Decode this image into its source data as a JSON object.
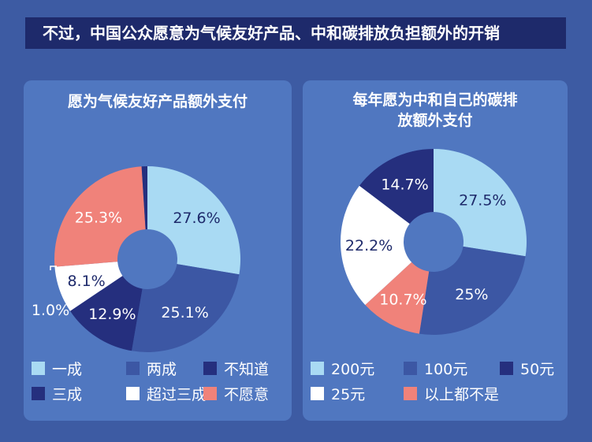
{
  "title": "不过，中国公众愿意为气候友好产品、中和碳排放负担额外的开销",
  "chart_data": [
    {
      "type": "pie",
      "title": "愿为气候友好产品额外支付",
      "categories": [
        "一成",
        "两成",
        "不知道",
        "三成",
        "超过三成",
        "不愿意"
      ],
      "series": [
        {
          "values": [
            27.6,
            25.1,
            12.9,
            1.0,
            8.1,
            25.3
          ]
        }
      ],
      "labels": [
        "27.6%",
        "25.1%",
        "12.9%",
        "1.0%",
        "8.1%",
        "25.3%"
      ],
      "slice_order": [
        "一成",
        "两成",
        "不知道",
        "超过三成",
        "不愿意",
        "三成"
      ],
      "colors": {
        "一成": "#a9daf3",
        "两成": "#3c57a4",
        "不知道": "#252f7e",
        "三成": "#252f7e",
        "超过三成": "#ffffff",
        "不愿意": "#f0827a"
      },
      "legend": "bottom"
    },
    {
      "type": "pie",
      "title": "每年愿为中和自己的碳排放额外支付",
      "categories": [
        "200元",
        "100元",
        "50元",
        "25元",
        "以上都不是"
      ],
      "series": [
        {
          "values": [
            27.5,
            25,
            14.7,
            22.2,
            10.7
          ]
        }
      ],
      "labels": [
        "27.5%",
        "25%",
        "14.7%",
        "22.2%",
        "10.7%"
      ],
      "slice_order": [
        "200元",
        "100元",
        "以上都不是",
        "25元",
        "50元"
      ],
      "colors": {
        "200元": "#a9daf3",
        "100元": "#3c57a4",
        "50元": "#252f7e",
        "25元": "#ffffff",
        "以上都不是": "#f0827a"
      },
      "legend": "bottom"
    }
  ]
}
